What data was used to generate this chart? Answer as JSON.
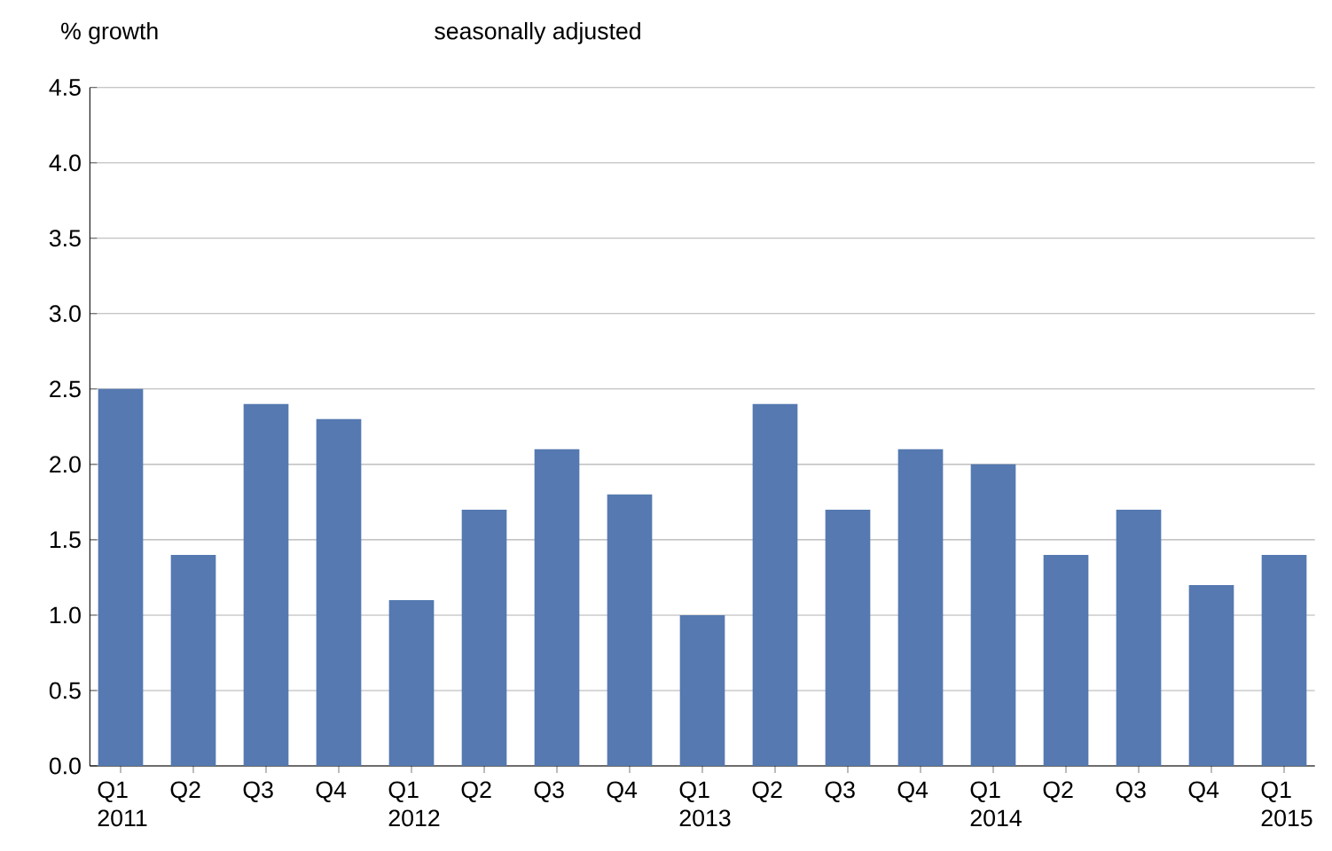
{
  "chart_data": {
    "type": "bar",
    "subtitle": "seasonally adjusted",
    "ylabel": "% growth",
    "categories": [
      "Q1 2011",
      "Q2",
      "Q3",
      "Q4",
      "Q1 2012",
      "Q2",
      "Q3",
      "Q4",
      "Q1 2013",
      "Q2",
      "Q3",
      "Q4",
      "Q1 2014",
      "Q2",
      "Q3",
      "Q4",
      "Q1 2015"
    ],
    "values": [
      2.5,
      1.4,
      2.4,
      2.3,
      1.1,
      1.7,
      2.1,
      1.8,
      1.0,
      2.4,
      1.7,
      2.1,
      2.0,
      1.4,
      1.7,
      1.2,
      1.4
    ],
    "color": "#5579b0",
    "ylim": [
      0,
      4.5
    ],
    "yticks": [
      {
        "value": 0,
        "label": "0.0"
      },
      {
        "value": 0.5,
        "label": "0.5"
      },
      {
        "value": 1,
        "label": "1.0"
      },
      {
        "value": 1.5,
        "label": "1.5"
      },
      {
        "value": 2,
        "label": "2.0"
      },
      {
        "value": 2.5,
        "label": "2.5"
      },
      {
        "value": 3,
        "label": "3.0"
      },
      {
        "value": 3.5,
        "label": "3.5"
      },
      {
        "value": 4,
        "label": "4.0"
      },
      {
        "value": 4.5,
        "label": "4.5"
      }
    ],
    "grid": "y"
  }
}
